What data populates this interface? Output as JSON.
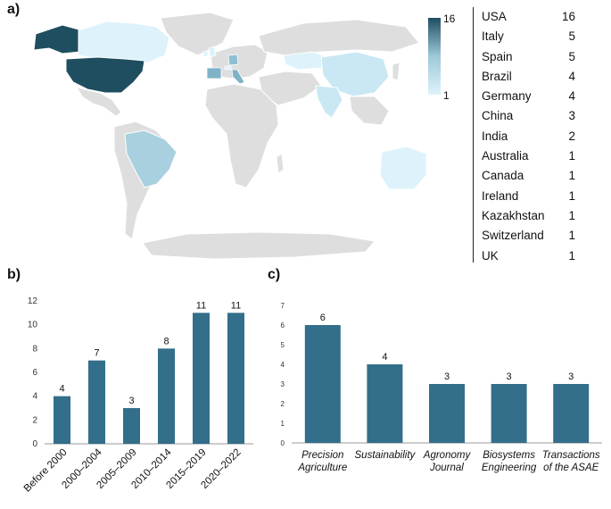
{
  "panels": {
    "a": "a)",
    "b": "b)",
    "c": "c)"
  },
  "legend": {
    "max": "16",
    "min": "1"
  },
  "colors": {
    "bar": "#336e8a",
    "land": "#dedede",
    "dark": "#1f4e61",
    "mid": "#8fbfd3",
    "light": "#c9e8f4",
    "palest": "#ddf2fa"
  },
  "countries": [
    {
      "name": "USA",
      "count": "16"
    },
    {
      "name": "Italy",
      "count": "5"
    },
    {
      "name": "Spain",
      "count": "5"
    },
    {
      "name": "Brazil",
      "count": "4"
    },
    {
      "name": "Germany",
      "count": "4"
    },
    {
      "name": "China",
      "count": "3"
    },
    {
      "name": "India",
      "count": "2"
    },
    {
      "name": "Australia",
      "count": "1"
    },
    {
      "name": "Canada",
      "count": "1"
    },
    {
      "name": "Ireland",
      "count": "1"
    },
    {
      "name": "Kazakhstan",
      "count": "1"
    },
    {
      "name": "Switzerland",
      "count": "1"
    },
    {
      "name": "UK",
      "count": "1"
    }
  ],
  "chart_data": [
    {
      "type": "bar",
      "categories": [
        "Before 2000",
        "2000–2004",
        "2005–2009",
        "2010–2014",
        "2015–2019",
        "2020–2022"
      ],
      "values": [
        4,
        7,
        3,
        8,
        11,
        11
      ],
      "yticks": [
        "0",
        "2",
        "4",
        "6",
        "8",
        "10",
        "12"
      ],
      "ylim": [
        0,
        12
      ]
    },
    {
      "type": "bar",
      "categories": [
        [
          "Precision",
          "Agriculture"
        ],
        [
          "Sustainability"
        ],
        [
          "Agronomy",
          "Journal"
        ],
        [
          "Biosystems",
          "Engineering"
        ],
        [
          "Transactions",
          "of the ASAE"
        ]
      ],
      "values": [
        6,
        4,
        3,
        3,
        3
      ],
      "yticks": [
        "0",
        "1",
        "2",
        "3",
        "4",
        "5",
        "6",
        "7"
      ],
      "ylim": [
        0,
        7
      ]
    }
  ]
}
